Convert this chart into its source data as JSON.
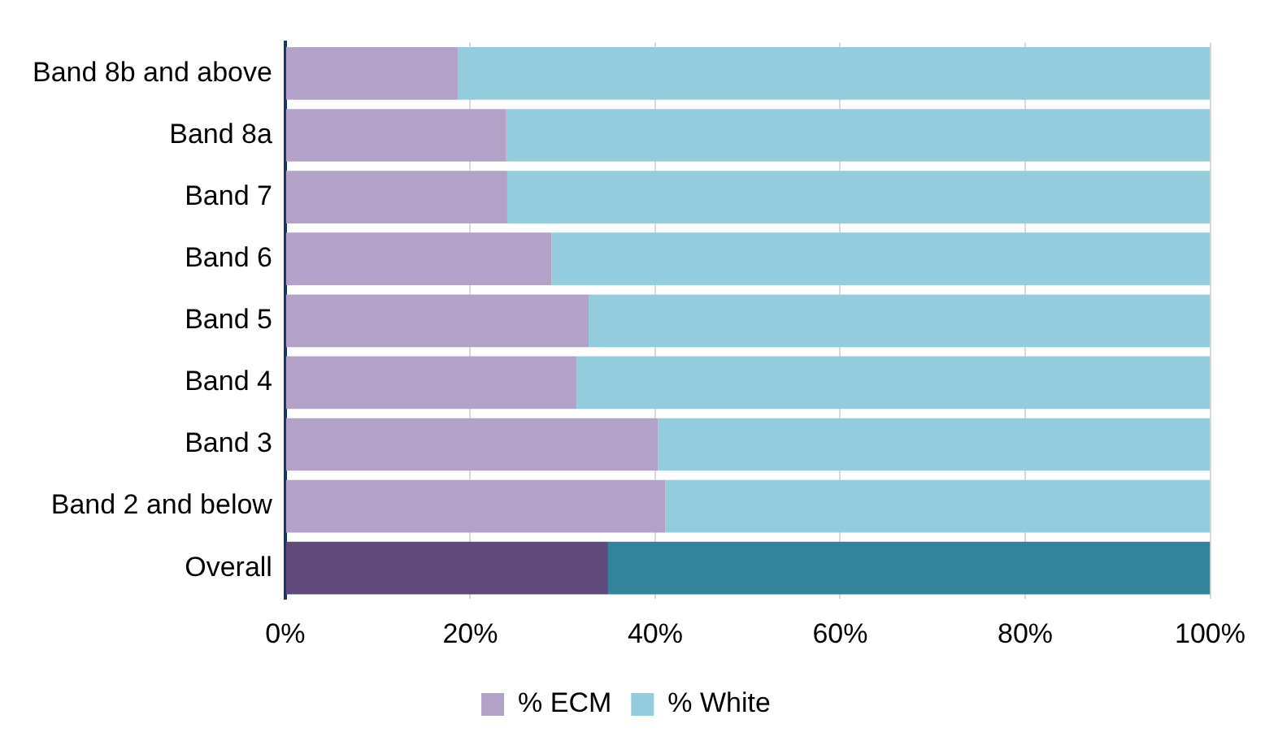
{
  "chart_data": {
    "type": "bar",
    "orientation": "horizontal",
    "stacked": true,
    "categories": [
      "Band 8b and above",
      "Band 8a",
      "Band 7",
      "Band 6",
      "Band 5",
      "Band 4",
      "Band 3",
      "Band 2 and below",
      "Overall"
    ],
    "series": [
      {
        "name": "% ECM",
        "color": "#b3a2c7",
        "colors": [
          "#b3a2c7",
          "#b3a2c7",
          "#b3a2c7",
          "#b3a2c7",
          "#b3a2c7",
          "#b3a2c7",
          "#b3a2c7",
          "#b3a2c7",
          "#604a7b"
        ],
        "values": [
          18.7,
          23.9,
          24.0,
          28.8,
          32.8,
          31.5,
          40.3,
          41.1,
          34.9
        ]
      },
      {
        "name": "% White",
        "color": "#93cddd",
        "colors": [
          "#93cddd",
          "#93cddd",
          "#93cddd",
          "#93cddd",
          "#93cddd",
          "#93cddd",
          "#93cddd",
          "#93cddd",
          "#31849b"
        ],
        "values": [
          81.3,
          76.1,
          76.0,
          71.2,
          67.2,
          68.5,
          59.7,
          58.9,
          65.1
        ]
      }
    ],
    "xlim": [
      0,
      100
    ],
    "xticks": [
      {
        "value": 0,
        "label": "0%"
      },
      {
        "value": 20,
        "label": "20%"
      },
      {
        "value": 40,
        "label": "40%"
      },
      {
        "value": 60,
        "label": "60%"
      },
      {
        "value": 80,
        "label": "80%"
      },
      {
        "value": 100,
        "label": "100%"
      }
    ],
    "grid": "x",
    "legend": "bottom"
  }
}
